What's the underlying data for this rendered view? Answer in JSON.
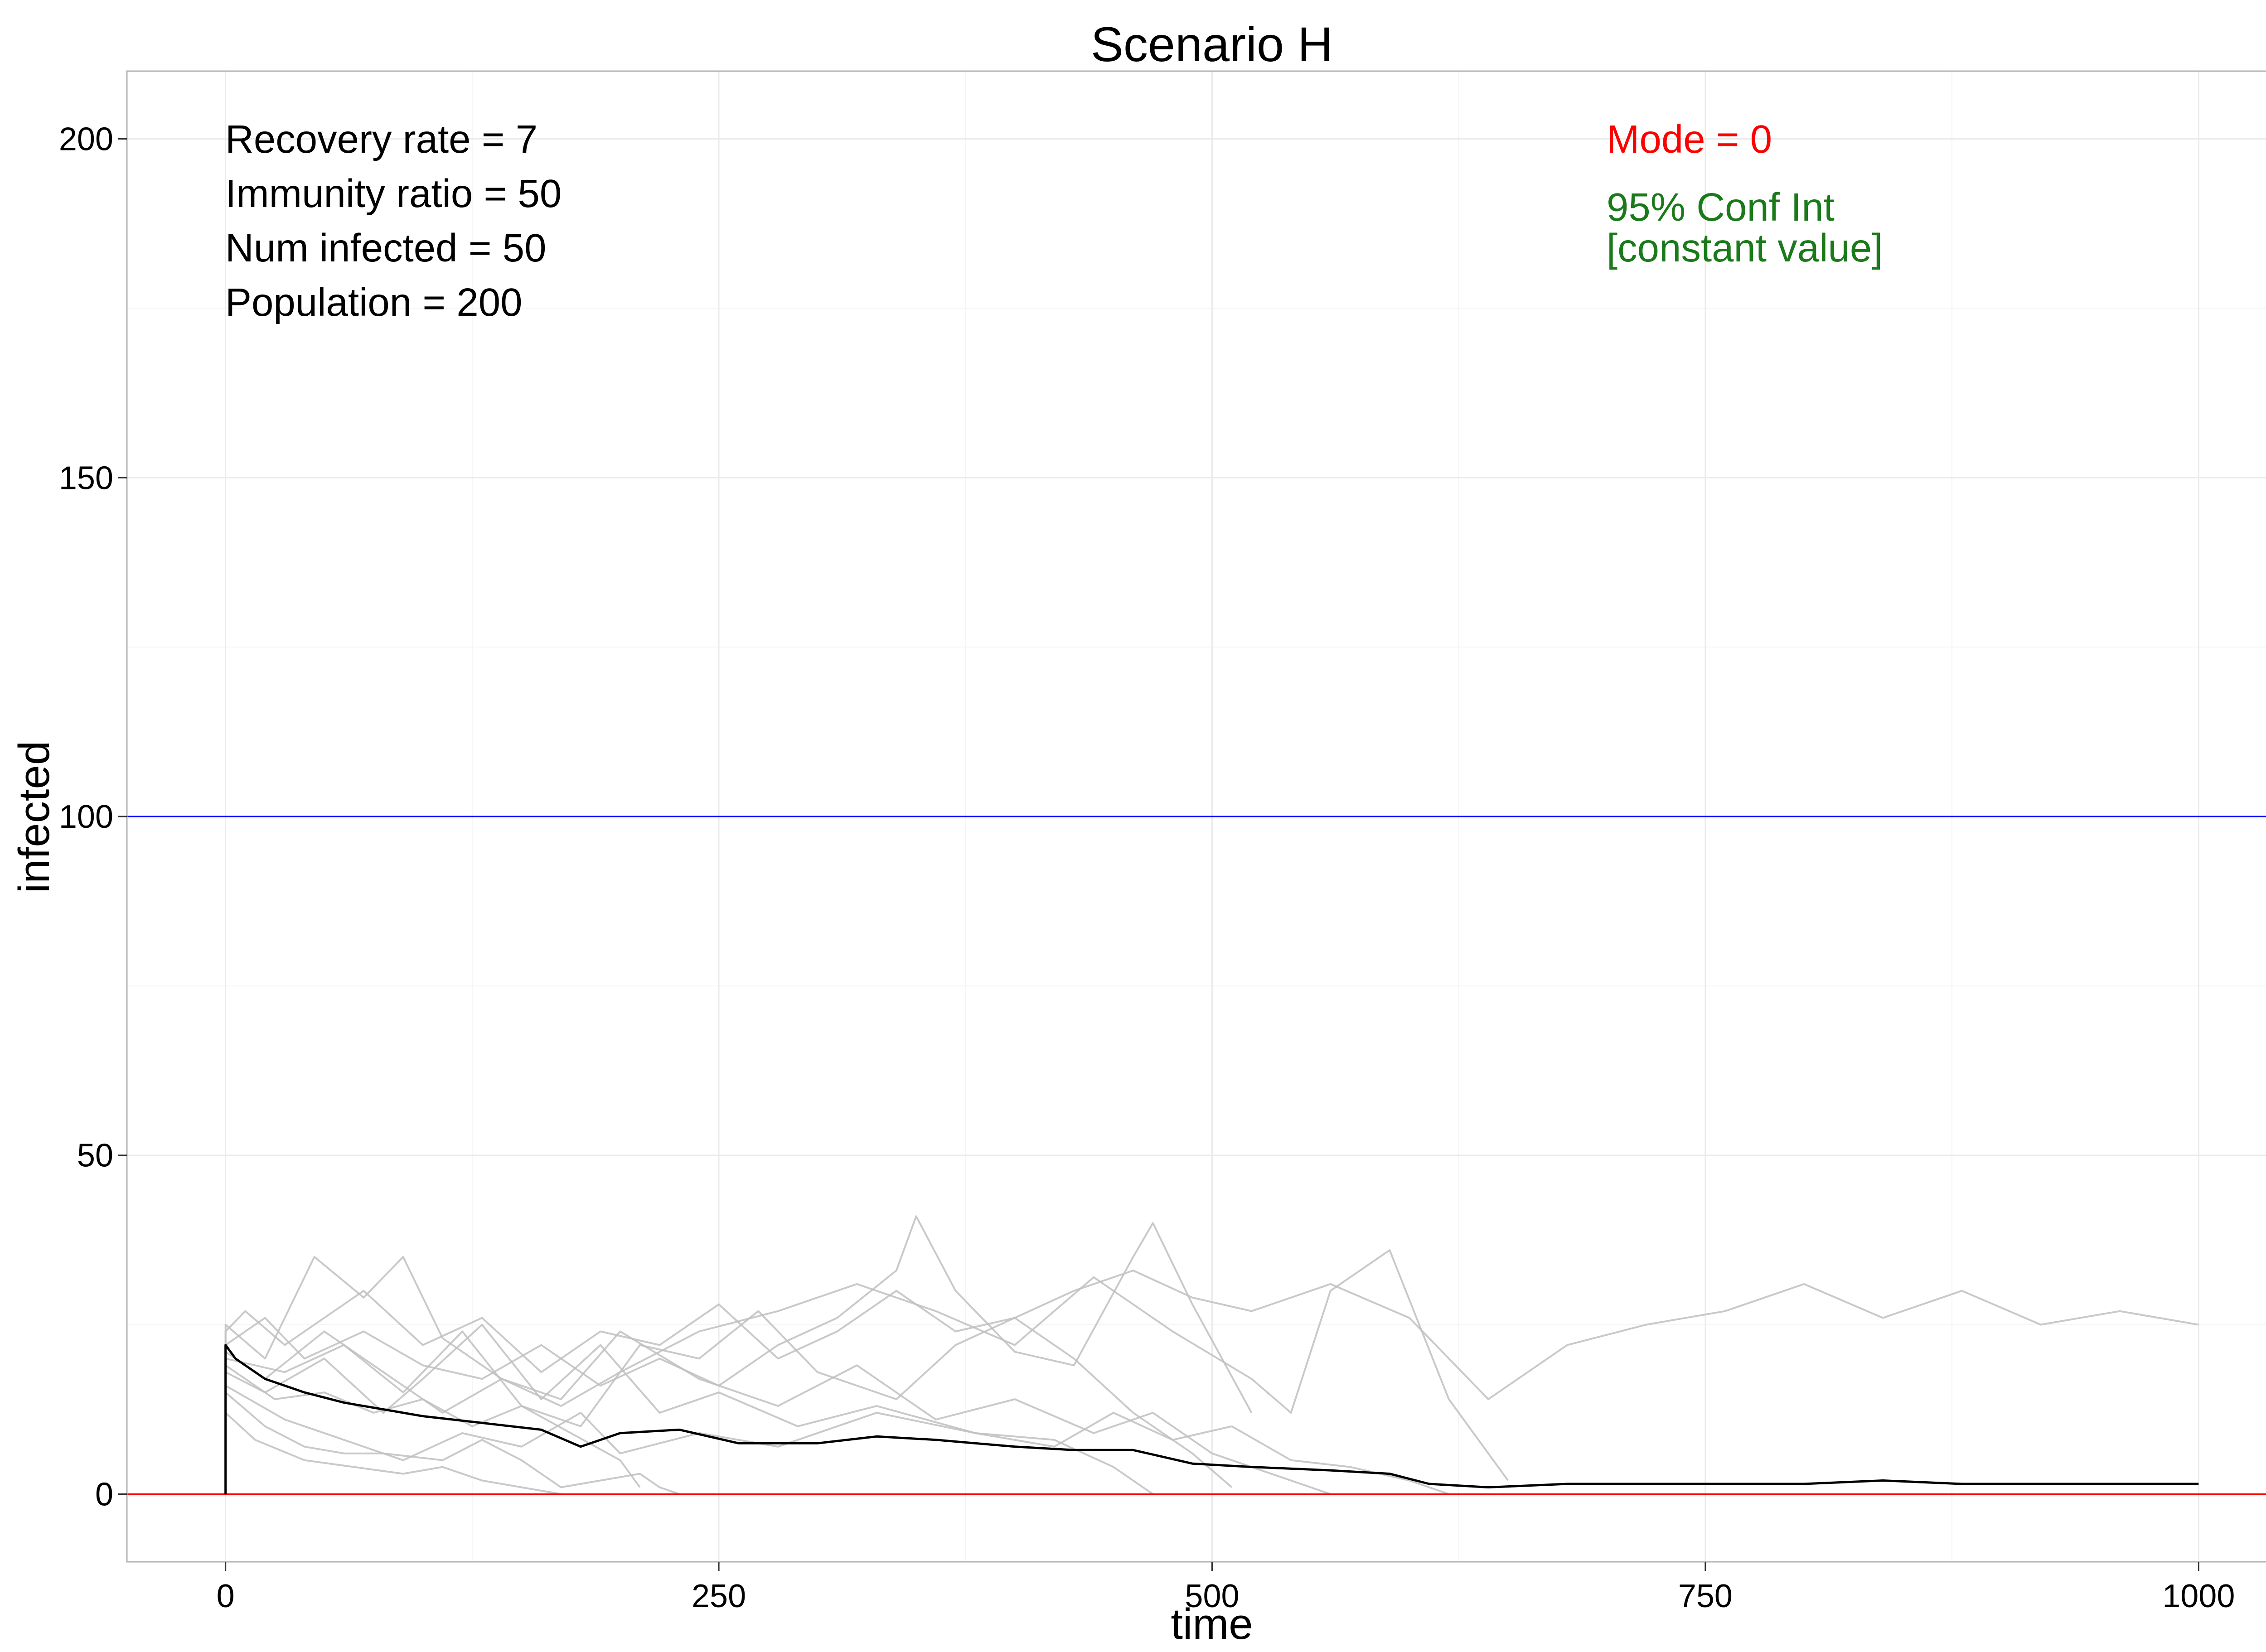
{
  "chart_data": {
    "type": "line",
    "title": "Scenario H",
    "xlabel": "time",
    "ylabel": "infected",
    "xlim": [
      -50,
      1050
    ],
    "ylim": [
      -10,
      210
    ],
    "x_ticks": [
      0,
      250,
      500,
      750,
      1000
    ],
    "y_ticks": [
      0,
      50,
      100,
      150,
      200
    ],
    "x_tick_labels": [
      "0",
      "250",
      "500",
      "750",
      "1000"
    ],
    "y_tick_labels": [
      "0",
      "50",
      "100",
      "150",
      "200"
    ],
    "grid": true,
    "params_text": [
      "Recovery rate = 7",
      "Immunity ratio = 50",
      "Num infected = 50",
      "Population = 200"
    ],
    "mode_text": "Mode = 0",
    "ci_text": [
      "95% Conf Int",
      "[constant value]"
    ],
    "reference_lines": [
      {
        "y": 100,
        "color": "#0000ff"
      },
      {
        "y": 0,
        "color": "#ff0000"
      }
    ],
    "colors": {
      "mean": "#000000",
      "runs": "#bfbfbf",
      "mode_text": "#ff0000",
      "ci_text": "#1a7a1a"
    },
    "series": [
      {
        "role": "mean",
        "x": [
          0,
          0,
          5,
          20,
          40,
          60,
          80,
          100,
          130,
          160,
          180,
          200,
          230,
          260,
          300,
          330,
          360,
          400,
          430,
          460,
          490,
          520,
          560,
          590,
          610,
          640,
          680,
          720,
          760,
          800,
          840,
          880,
          920,
          960,
          1000
        ],
        "y": [
          0,
          22,
          20,
          17,
          15,
          13.5,
          12.5,
          11.5,
          10.5,
          9.5,
          7,
          9,
          9.5,
          7.5,
          7.5,
          8.5,
          8,
          7,
          6.5,
          6.5,
          4.5,
          4,
          3.5,
          3,
          1.5,
          1,
          1.5,
          1.5,
          1.5,
          1.5,
          2,
          1.5,
          1.5,
          1.5,
          1.5
        ]
      },
      {
        "role": "run",
        "x": [
          0,
          0,
          10,
          30,
          50,
          70,
          100,
          130,
          160,
          190,
          220,
          250,
          280,
          310,
          340,
          370,
          400,
          430,
          460,
          490,
          520,
          560,
          600,
          640,
          680,
          720,
          760,
          800,
          840,
          880,
          920,
          960,
          1000
        ],
        "y": [
          0,
          24,
          27,
          22,
          26,
          30,
          22,
          26,
          18,
          24,
          22,
          28,
          20,
          24,
          30,
          24,
          26,
          30,
          33,
          29,
          27,
          31,
          26,
          14,
          22,
          25,
          27,
          31,
          26,
          30,
          25,
          27,
          25
        ]
      },
      {
        "role": "run",
        "x": [
          0,
          0,
          20,
          40,
          70,
          100,
          130,
          160,
          190,
          220,
          250,
          280,
          310,
          340,
          350,
          370,
          400,
          430,
          460,
          470,
          490,
          520
        ],
        "y": [
          0,
          22,
          26,
          20,
          24,
          19,
          17,
          22,
          16,
          20,
          16,
          22,
          26,
          33,
          41,
          30,
          21,
          19,
          35,
          40,
          28,
          12
        ]
      },
      {
        "role": "run",
        "x": [
          0,
          0,
          20,
          45,
          70,
          90,
          110,
          140,
          170,
          200,
          240,
          280,
          320,
          360,
          400,
          440,
          480,
          520,
          540,
          560,
          590,
          620,
          650
        ],
        "y": [
          0,
          25,
          20,
          35,
          29,
          35,
          23,
          17,
          13,
          18,
          24,
          27,
          31,
          27,
          22,
          32,
          24,
          17,
          12,
          30,
          36,
          14,
          2
        ]
      },
      {
        "role": "run",
        "x": [
          0,
          0,
          30,
          60,
          90,
          120,
          150,
          180,
          210,
          240,
          270,
          300,
          340,
          370,
          400,
          430,
          460,
          490,
          510
        ],
        "y": [
          0,
          20,
          18,
          22,
          15,
          24,
          13,
          10,
          22,
          20,
          27,
          18,
          14,
          22,
          26,
          20,
          12,
          6,
          1
        ]
      },
      {
        "role": "run",
        "x": [
          0,
          0,
          20,
          50,
          80,
          100,
          130,
          160,
          190,
          220,
          250,
          290,
          330,
          380,
          420,
          450,
          470
        ],
        "y": [
          0,
          18,
          15,
          20,
          12,
          17,
          25,
          14,
          22,
          12,
          15,
          10,
          13,
          9,
          8,
          4,
          0
        ]
      },
      {
        "role": "run",
        "x": [
          0,
          0,
          20,
          40,
          60,
          80,
          110,
          130,
          150,
          160,
          170,
          190,
          210,
          220,
          230
        ],
        "y": [
          0,
          15,
          10,
          7,
          6,
          6,
          5,
          8,
          5,
          3,
          1,
          2,
          3,
          1,
          0
        ]
      },
      {
        "role": "run",
        "x": [
          0,
          0,
          25,
          50,
          75,
          100,
          125,
          150,
          175,
          200,
          210
        ],
        "y": [
          0,
          19,
          14,
          15,
          12,
          14,
          10,
          13,
          9,
          5,
          1
        ]
      },
      {
        "role": "run",
        "x": [
          0,
          0,
          20,
          50,
          80,
          110,
          140,
          170,
          200,
          240,
          280,
          320,
          360,
          400,
          440,
          470,
          500,
          530,
          560
        ],
        "y": [
          0,
          21,
          17,
          24,
          18,
          12,
          17,
          14,
          24,
          17,
          13,
          19,
          11,
          14,
          9,
          12,
          6,
          3,
          0
        ]
      },
      {
        "role": "run",
        "x": [
          0,
          0,
          30,
          60,
          90,
          120,
          150,
          180,
          200,
          240,
          280,
          330,
          380,
          420,
          450,
          480,
          510,
          540,
          570,
          600,
          620
        ],
        "y": [
          0,
          16,
          11,
          8,
          5,
          9,
          7,
          12,
          6,
          9,
          7,
          12,
          9,
          7,
          12,
          8,
          10,
          5,
          4,
          2,
          0
        ]
      },
      {
        "role": "run",
        "x": [
          0,
          0,
          15,
          40,
          65,
          90,
          110,
          130,
          150,
          170
        ],
        "y": [
          0,
          12,
          8,
          5,
          4,
          3,
          4,
          2,
          1,
          0
        ]
      }
    ]
  }
}
